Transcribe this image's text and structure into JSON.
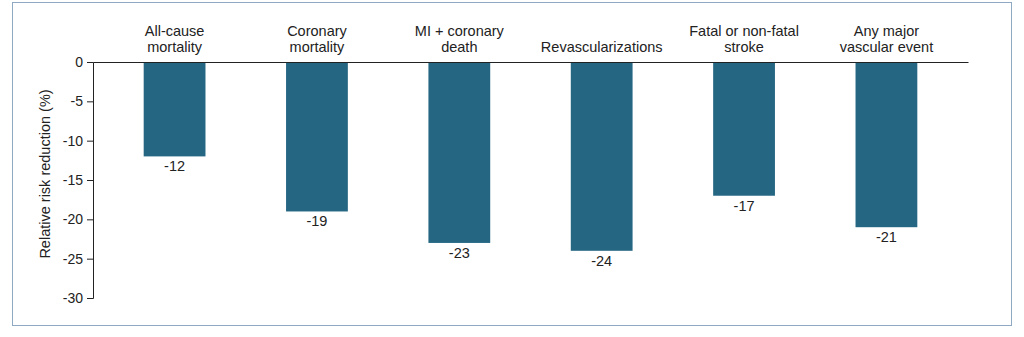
{
  "chart_data": {
    "type": "bar",
    "categories": [
      "All-cause\nmortality",
      "Coronary\nmortality",
      "MI + coronary\ndeath",
      "Revascularizations",
      "Fatal or non-fatal\nstroke",
      "Any major\nvascular event"
    ],
    "values": [
      -12,
      -19,
      -23,
      -24,
      -17,
      -21
    ],
    "color": "#256683",
    "y_label": "Relative risk reduction (%)",
    "ylim": [
      -30,
      0
    ],
    "yticks": [
      0,
      -5,
      -10,
      -15,
      -20,
      -25,
      -30
    ],
    "grid": false,
    "data_labels": true
  }
}
